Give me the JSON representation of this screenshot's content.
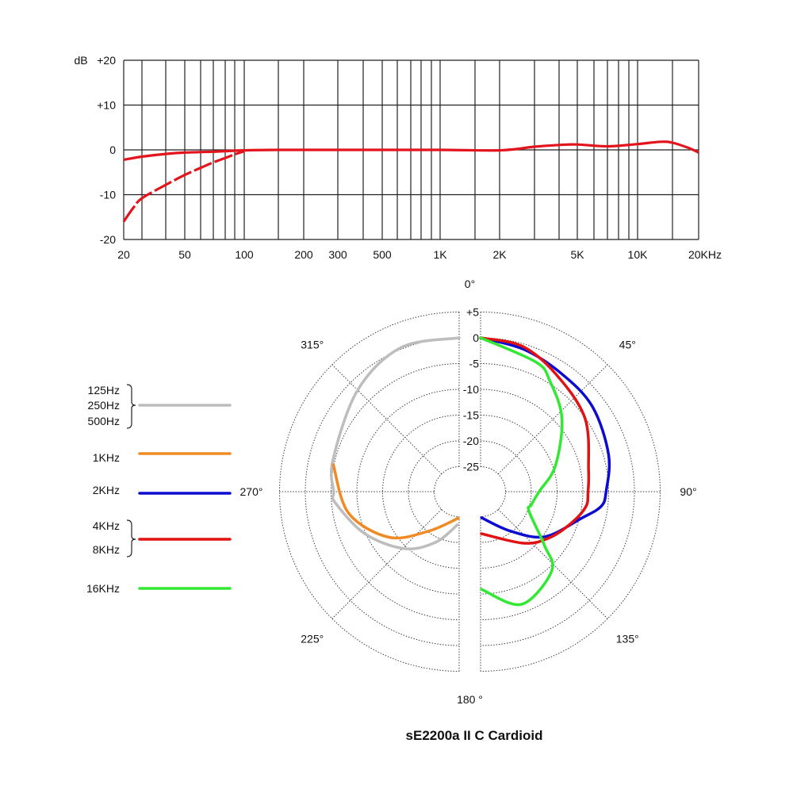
{
  "chart_data": [
    {
      "type": "line",
      "title": "",
      "ylabel": "dB",
      "xlabel": "",
      "xscale": "log",
      "xlim": [
        20,
        20000
      ],
      "ylim": [
        -20,
        20
      ],
      "grid": true,
      "yticks": [
        {
          "value": 20,
          "label": "+20"
        },
        {
          "value": 10,
          "label": "+10"
        },
        {
          "value": 0,
          "label": "0"
        },
        {
          "value": -10,
          "label": "-10"
        },
        {
          "value": -20,
          "label": "-20"
        }
      ],
      "xticks": [
        {
          "value": 20,
          "label": "20"
        },
        {
          "value": 50,
          "label": "50"
        },
        {
          "value": 100,
          "label": "100"
        },
        {
          "value": 200,
          "label": "200"
        },
        {
          "value": 300,
          "label": "300"
        },
        {
          "value": 500,
          "label": "500"
        },
        {
          "value": 1000,
          "label": "1K"
        },
        {
          "value": 2000,
          "label": "2K"
        },
        {
          "value": 5000,
          "label": "5K"
        },
        {
          "value": 10000,
          "label": "10K"
        },
        {
          "value": 20000,
          "label": "20KHz"
        }
      ],
      "grid_x": [
        20,
        30,
        40,
        50,
        60,
        70,
        80,
        90,
        100,
        150,
        200,
        300,
        400,
        500,
        600,
        700,
        800,
        900,
        1000,
        1500,
        2000,
        3000,
        4000,
        5000,
        6000,
        7000,
        8000,
        9000,
        10000,
        15000,
        20000
      ],
      "series": [
        {
          "name": "response",
          "style": "solid",
          "color": "#e3141c",
          "x": [
            20,
            30,
            40,
            50,
            70,
            100,
            150,
            300,
            1000,
            2000,
            3000,
            4000,
            5000,
            7000,
            10000,
            13000,
            15000,
            18000,
            20000
          ],
          "y": [
            -2.2,
            -1.5,
            -0.9,
            -0.6,
            -0.4,
            -0.1,
            0,
            0,
            0,
            -0.1,
            0.7,
            1.1,
            1.2,
            0.8,
            1.3,
            1.8,
            1.6,
            0.4,
            -0.6
          ]
        },
        {
          "name": "low-cut",
          "style": "dashed",
          "color": "#e3141c",
          "x": [
            20,
            25,
            30,
            40,
            50,
            60,
            70,
            80,
            90,
            100
          ],
          "y": [
            -16,
            -12.8,
            -10.8,
            -7.8,
            -5.6,
            -4.0,
            -2.8,
            -1.8,
            -1.0,
            -0.3
          ]
        }
      ]
    },
    {
      "type": "polar",
      "title": "sE2200a II C  Cardioid",
      "rlim": [
        -25,
        5
      ],
      "rticks": [
        {
          "value": 5,
          "label": "+5"
        },
        {
          "value": 0,
          "label": "0"
        },
        {
          "value": -5,
          "label": "-5"
        },
        {
          "value": -10,
          "label": "-10"
        },
        {
          "value": -15,
          "label": "-15"
        },
        {
          "value": -20,
          "label": "-20"
        },
        {
          "value": -25,
          "label": "-25"
        }
      ],
      "angle_labels": [
        {
          "value": 0,
          "label": "0°"
        },
        {
          "value": 45,
          "label": "45°"
        },
        {
          "value": 90,
          "label": "90°"
        },
        {
          "value": 135,
          "label": "135°"
        },
        {
          "value": 180,
          "label": "180 °"
        },
        {
          "value": 225,
          "label": "225°"
        },
        {
          "value": 270,
          "label": "270°"
        },
        {
          "value": 315,
          "label": "315°"
        }
      ],
      "series": [
        {
          "name": "125Hz/250Hz/500Hz",
          "legend": [
            "125Hz",
            "250Hz",
            "500Hz"
          ],
          "color": "#bdbdbd",
          "side": "left",
          "points": [
            [
              360,
              0
            ],
            [
              338,
              0.3
            ],
            [
              315,
              -2
            ],
            [
              284,
              -4.6
            ],
            [
              270,
              -5.5
            ],
            [
              265,
              -5.7
            ],
            [
              246,
              -9.8
            ],
            [
              224,
              -14.5
            ],
            [
              205,
              -19
            ],
            [
              183,
              -23.4
            ]
          ]
        },
        {
          "name": "1KHz",
          "legend": [
            "1KHz"
          ],
          "color": "#f08a24",
          "side": "left",
          "points": [
            [
              282,
              -4.9
            ],
            [
              259,
              -8
            ],
            [
              237,
              -13.6
            ],
            [
              218,
              -20.1
            ],
            [
              182,
              -24.7
            ]
          ]
        },
        {
          "name": "2KHz",
          "legend": [
            "2KHz"
          ],
          "color": "#0c0cd0",
          "side": "right",
          "points": [
            [
              0,
              0
            ],
            [
              17,
              -1
            ],
            [
              35,
              -2.1
            ],
            [
              53,
              -2.6
            ],
            [
              74,
              -4
            ],
            [
              90,
              -5.5
            ],
            [
              97,
              -6.3
            ],
            [
              105,
              -9.7
            ],
            [
              125,
              -14.6
            ],
            [
              143,
              -20.3
            ],
            [
              178,
              -24.8
            ]
          ]
        },
        {
          "name": "4KHz/8KHz",
          "legend": [
            "4KHz",
            "8KHz"
          ],
          "color": "#e01212",
          "side": "right",
          "points": [
            [
              0,
              0
            ],
            [
              16,
              -0.5
            ],
            [
              33,
              -2.8
            ],
            [
              55,
              -5.1
            ],
            [
              79,
              -8.5
            ],
            [
              90,
              -9
            ],
            [
              98,
              -9.2
            ],
            [
              109,
              -11.2
            ],
            [
              124,
              -13.8
            ],
            [
              140,
              -16.8
            ],
            [
              179,
              -21.7
            ]
          ]
        },
        {
          "name": "16KHz",
          "legend": [
            "16KHz"
          ],
          "color": "#33e833",
          "side": "right",
          "points": [
            [
              0,
              0
            ],
            [
              23,
              -2.5
            ],
            [
              32,
              -4.5
            ],
            [
              48,
              -8.6
            ],
            [
              71,
              -14.5
            ],
            [
              90,
              -18.5
            ],
            [
              105,
              -19.7
            ],
            [
              112,
              -19.7
            ],
            [
              130,
              -13.7
            ],
            [
              138,
              -9.2
            ],
            [
              160,
              -6.6
            ],
            [
              179.5,
              -10.9
            ]
          ]
        }
      ]
    }
  ]
}
